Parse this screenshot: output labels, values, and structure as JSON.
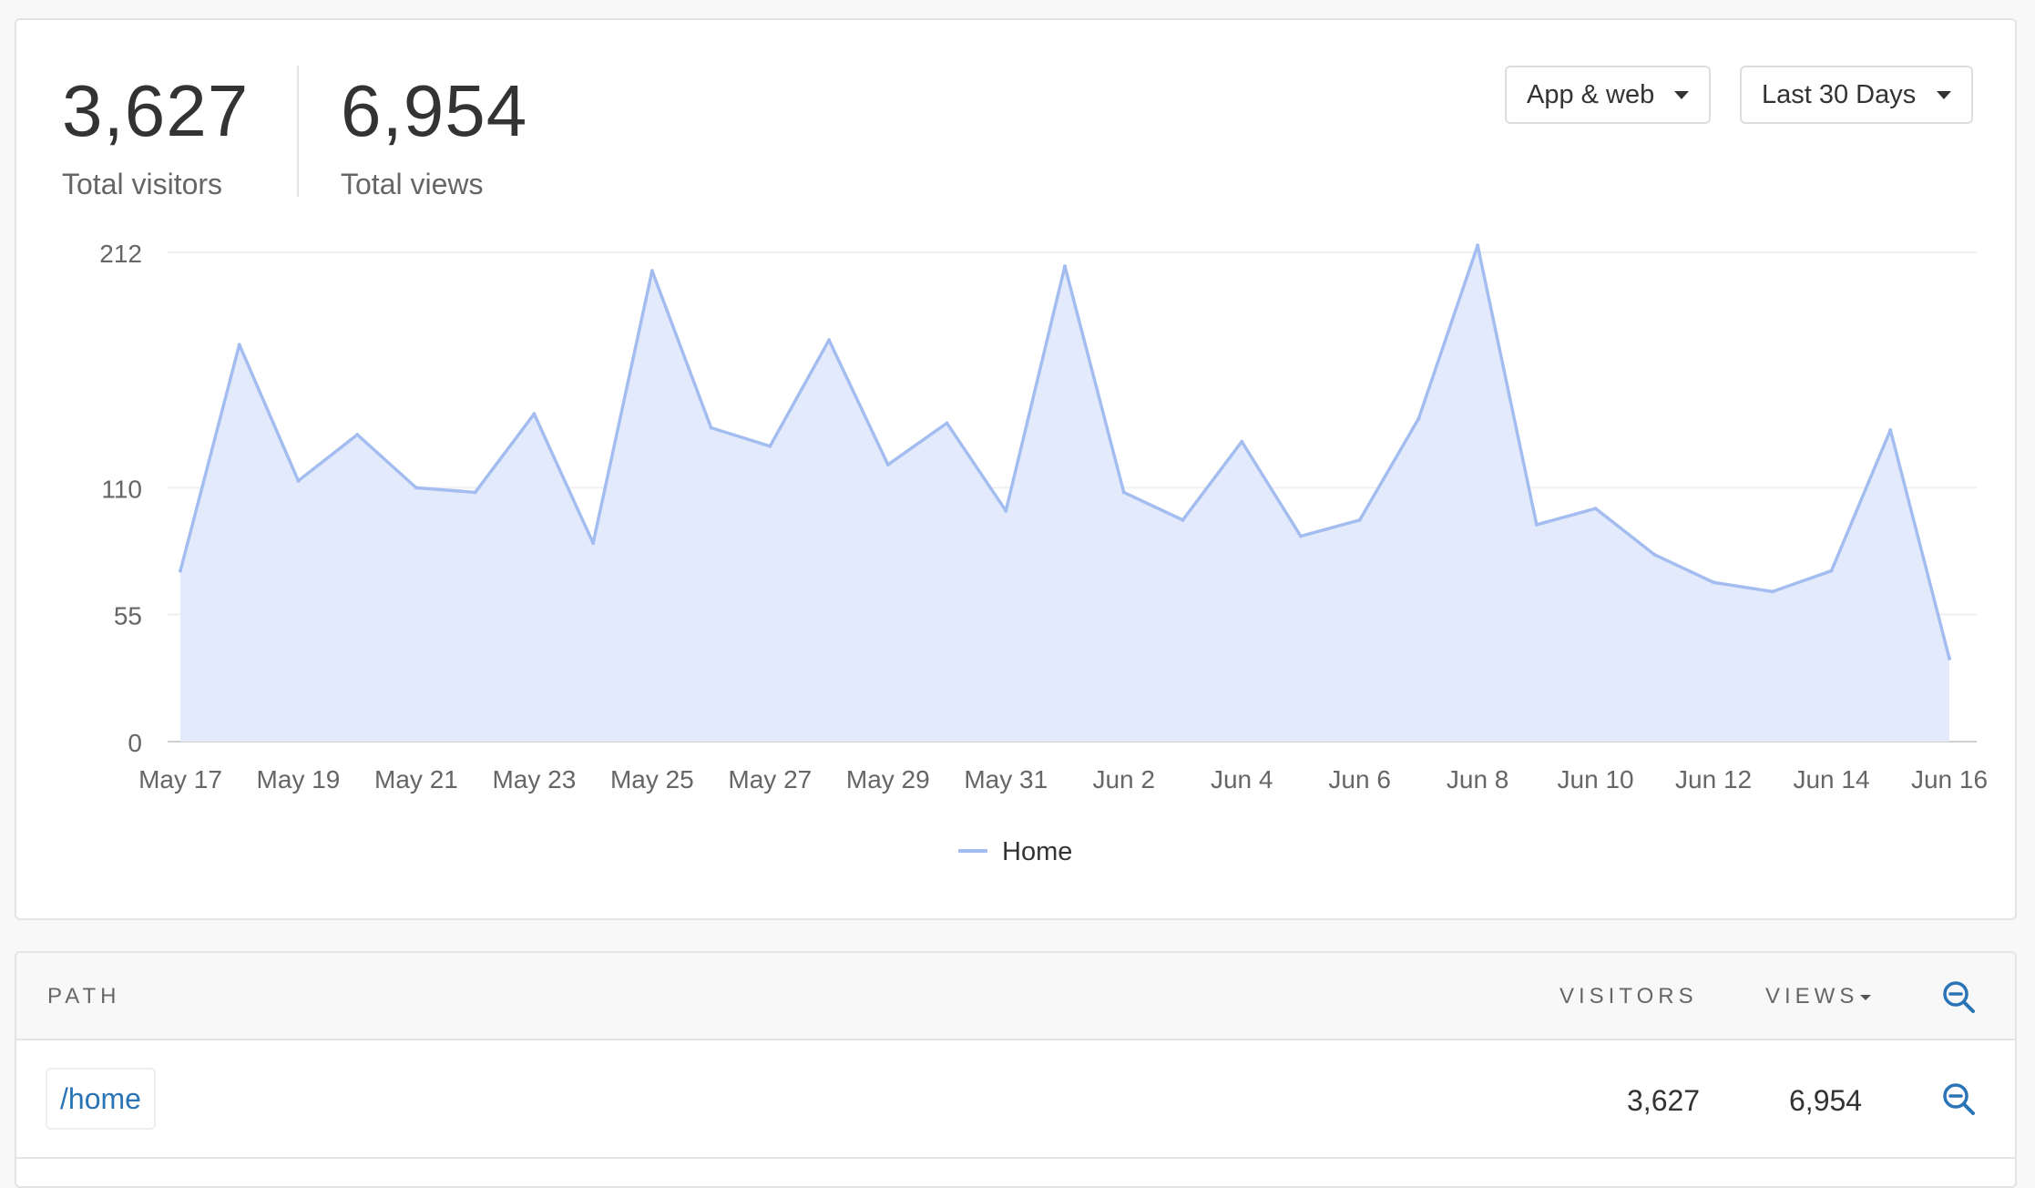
{
  "stats": {
    "visitors": {
      "value": "3,627",
      "label": "Total visitors"
    },
    "views": {
      "value": "6,954",
      "label": "Total views"
    }
  },
  "filters": {
    "platform": "App & web",
    "range": "Last 30 Days"
  },
  "colors": {
    "series_line": "#a4bdf0",
    "series_fill": "#e3eafb",
    "link": "#2a74b5"
  },
  "chart_data": {
    "type": "area",
    "x": [
      "May 17",
      "May 18",
      "May 19",
      "May 20",
      "May 21",
      "May 22",
      "May 23",
      "May 24",
      "May 25",
      "May 26",
      "May 27",
      "May 28",
      "May 29",
      "May 30",
      "May 31",
      "Jun 1",
      "Jun 2",
      "Jun 3",
      "Jun 4",
      "Jun 5",
      "Jun 6",
      "Jun 7",
      "Jun 8",
      "Jun 9",
      "Jun 10",
      "Jun 11",
      "Jun 12",
      "Jun 13",
      "Jun 14",
      "Jun 15",
      "Jun 16"
    ],
    "x_tick_labels": [
      "May 17",
      "May 19",
      "May 21",
      "May 23",
      "May 25",
      "May 27",
      "May 29",
      "May 31",
      "Jun 2",
      "Jun 4",
      "Jun 6",
      "Jun 8",
      "Jun 10",
      "Jun 12",
      "Jun 14",
      "Jun 16"
    ],
    "y_ticks": [
      0,
      55,
      110,
      212
    ],
    "ylim": [
      0,
      212
    ],
    "series": [
      {
        "name": "Home",
        "values": [
          74,
          172,
          113,
          133,
          110,
          108,
          142,
          86,
          204,
          136,
          128,
          174,
          120,
          138,
          100,
          206,
          108,
          96,
          130,
          89,
          96,
          140,
          215,
          94,
          101,
          81,
          69,
          65,
          74,
          135,
          36
        ]
      }
    ],
    "legend": "bottom-center",
    "grid": true
  },
  "table": {
    "headers": {
      "path": "Path",
      "visitors": "Visitors",
      "views": "Views"
    },
    "rows": [
      {
        "path": "/home",
        "visitors": "3,627",
        "views": "6,954"
      }
    ]
  }
}
